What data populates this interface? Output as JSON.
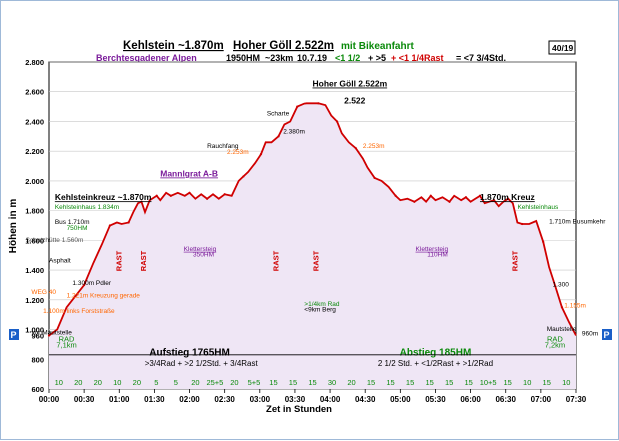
{
  "header": {
    "title_left": "Kehlstein ~1.870m",
    "title_mid": "Hoher Göll 2.522m",
    "title_right": "mit Bikeanfahrt",
    "badge": "40/19",
    "subtitle": {
      "region": "Berchtesgadener Alpen",
      "hm": "1950HM",
      "km": "~23km",
      "date": "10.7.19",
      "formula_a": "<1 1/2",
      "formula_b": "+ >5",
      "formula_c": "+ <1 1/4Rast",
      "formula_d": "= <7 3/4Std."
    }
  },
  "colors": {
    "profile_line": "#d00000",
    "profile_fill": "#efe6f5",
    "green": "#0a8a0a",
    "purple": "#7a1a9a",
    "orange": "#ff6600",
    "blue_p": "#1a5fc8"
  },
  "chart_data": {
    "type": "area",
    "ylabel": "Höhen in m",
    "xlabel": "Zet in Stunden",
    "ylim": [
      600,
      2800
    ],
    "xlim": [
      0,
      450
    ],
    "yticks": [
      "600",
      "800",
      "960",
      "1.000",
      "1.200",
      "1.400",
      "1.600",
      "1.800",
      "2.000",
      "2.200",
      "2.400",
      "2.600",
      "2.800"
    ],
    "ytick_values": [
      600,
      800,
      960,
      1000,
      1200,
      1400,
      1600,
      1800,
      2000,
      2200,
      2400,
      2600,
      2800
    ],
    "xticks": [
      "00:00",
      "00:30",
      "01:00",
      "01:30",
      "02:00",
      "02:30",
      "03:00",
      "03:30",
      "04:00",
      "04:30",
      "05:00",
      "05:30",
      "06:00",
      "06:30",
      "07:00",
      "07:30"
    ],
    "xtick_values": [
      0,
      30,
      60,
      90,
      120,
      150,
      180,
      210,
      240,
      270,
      300,
      330,
      360,
      390,
      420,
      450
    ],
    "profile_x": [
      0,
      7,
      15,
      30,
      38,
      45,
      52,
      58,
      62,
      68,
      72,
      76,
      79,
      82,
      86,
      92,
      95,
      100,
      104,
      110,
      116,
      120,
      125,
      130,
      135,
      140,
      145,
      150,
      156,
      162,
      166,
      170,
      176,
      181,
      185,
      190,
      196,
      201,
      206,
      212,
      218,
      220,
      230,
      236,
      241,
      246,
      250,
      256,
      262,
      268,
      272,
      278,
      284,
      290,
      296,
      300,
      306,
      312,
      318,
      322,
      326,
      330,
      336,
      342,
      346,
      352,
      356,
      360,
      364,
      368,
      372,
      376,
      380,
      384,
      388,
      392,
      396,
      400,
      404,
      410,
      416,
      422,
      427,
      432,
      438,
      444,
      450
    ],
    "profile_y": [
      960,
      1000,
      1150,
      1300,
      1450,
      1570,
      1700,
      1720,
      1710,
      1720,
      1790,
      1850,
      1860,
      1790,
      1870,
      1900,
      1870,
      1920,
      1900,
      1920,
      1900,
      1920,
      1880,
      1910,
      1880,
      1910,
      1880,
      1910,
      1900,
      2000,
      2030,
      2060,
      2120,
      2180,
      2260,
      2260,
      2300,
      2380,
      2400,
      2500,
      2520,
      2522,
      2522,
      2510,
      2440,
      2400,
      2320,
      2260,
      2220,
      2150,
      2090,
      2020,
      2000,
      1960,
      1900,
      1870,
      1880,
      1860,
      1890,
      1860,
      1900,
      1870,
      1890,
      1860,
      1900,
      1870,
      1890,
      1860,
      1880,
      1900,
      1850,
      1860,
      1870,
      1830,
      1860,
      1880,
      1850,
      1720,
      1710,
      1710,
      1730,
      1590,
      1420,
      1300,
      1150,
      1050,
      960
    ],
    "segments_bottom": [
      "10",
      "20",
      "20",
      "10",
      "20",
      "5",
      "5",
      "20",
      "25+5",
      "20",
      "5+5",
      "15",
      "15",
      "15",
      "30",
      "20",
      "15",
      "15",
      "15",
      "15",
      "15",
      "15",
      "10+5",
      "15",
      "10",
      "15",
      "10"
    ],
    "rests": [
      {
        "label": "RAST",
        "x": 62
      },
      {
        "label": "RAST",
        "x": 83
      },
      {
        "label": "RAST",
        "x": 196
      },
      {
        "label": "RAST",
        "x": 230
      },
      {
        "label": "RAST",
        "x": 400
      }
    ],
    "annotations": [
      {
        "text": "Kehlsteinkreuz ~1.870m",
        "x": 5,
        "y": 1870,
        "color": "#000",
        "bold": true,
        "underline": true
      },
      {
        "text": "Kehlsteinhaus 1.834m",
        "x": 5,
        "y": 1810,
        "color": "#0a8a0a"
      },
      {
        "text": "Bus 1.710m",
        "x": 5,
        "y": 1710,
        "color": "#000"
      },
      {
        "text": "750HM",
        "x": 15,
        "y": 1670,
        "color": "#0a8a0a"
      },
      {
        "text": "Schutzhütte 1.560m",
        "x": -20,
        "y": 1590,
        "color": "#555"
      },
      {
        "text": "Asphalt",
        "x": 0,
        "y": 1450,
        "color": "#000"
      },
      {
        "text": "1.300m Pdler",
        "x": 20,
        "y": 1300,
        "color": "#000"
      },
      {
        "text": "WEG 40",
        "x": -15,
        "y": 1240,
        "color": "#ff6600"
      },
      {
        "text": "1.221m Kreuzung gerade",
        "x": 15,
        "y": 1215,
        "color": "#ff6600"
      },
      {
        "text": "1.100m links Forststraße",
        "x": -5,
        "y": 1110,
        "color": "#ff6600"
      },
      {
        "text": "vor Mautstelle",
        "x": -15,
        "y": 965,
        "color": "#000"
      },
      {
        "text": "Mannlgrat A-B",
        "x": 95,
        "y": 2030,
        "color": "#7a1a9a",
        "bold": true,
        "underline": true
      },
      {
        "text": "Klettersteig",
        "x": 115,
        "y": 1530,
        "color": "#7a1a9a",
        "underline": true
      },
      {
        "text": "350HM",
        "x": 123,
        "y": 1490,
        "color": "#7a1a9a"
      },
      {
        "text": "Rauchfang",
        "x": 135,
        "y": 2220,
        "color": "#000"
      },
      {
        "text": "2.253m",
        "x": 152,
        "y": 2180,
        "color": "#ff6600"
      },
      {
        "text": "Scharte",
        "x": 186,
        "y": 2440,
        "color": "#000"
      },
      {
        "text": "2.380m",
        "x": 200,
        "y": 2320,
        "color": "#000"
      },
      {
        "text": "2.522",
        "x": 252,
        "y": 2520,
        "color": "#000",
        "bold": true
      },
      {
        "text": "2.253m",
        "x": 268,
        "y": 2220,
        "color": "#ff6600"
      },
      {
        "text": "Hoher Göll 2.522m",
        "x": 225,
        "y": 2635,
        "color": "#000",
        "bold": true,
        "underline": true
      },
      {
        "text": "1.870m Kreuz",
        "x": 368,
        "y": 1870,
        "color": "#000",
        "bold": true,
        "underline": true
      },
      {
        "text": "Kehlsteinhaus",
        "x": 400,
        "y": 1810,
        "color": "#0a8a0a"
      },
      {
        "text": "1.710m Busumkehr",
        "x": 427,
        "y": 1715,
        "color": "#000"
      },
      {
        "text": "Klettersteig",
        "x": 313,
        "y": 1530,
        "color": "#7a1a9a",
        "underline": true
      },
      {
        "text": "110HM",
        "x": 323,
        "y": 1490,
        "color": "#7a1a9a"
      },
      {
        "text": "1.300",
        "x": 430,
        "y": 1290,
        "color": "#000"
      },
      {
        "text": "1.155m",
        "x": 440,
        "y": 1150,
        "color": "#ff6600"
      },
      {
        "text": "Mautstelle",
        "x": 425,
        "y": 990,
        "color": "#000"
      },
      {
        "text": "960m",
        "x": 455,
        "y": 960,
        "color": "#000"
      },
      {
        "text": ">1/4km Rad",
        "x": 218,
        "y": 1160,
        "color": "#0a8a0a"
      },
      {
        "text": "<9km Berg",
        "x": 218,
        "y": 1120,
        "color": "#000"
      }
    ],
    "phases": [
      {
        "label": "Aufstieg 1765HM",
        "x": 120,
        "y": 825,
        "color": "#000",
        "bold": true
      },
      {
        "label": ">3/4Rad + >2 1/2Std. + 3/4Rast",
        "x": 130,
        "y": 755,
        "color": "#000"
      },
      {
        "label": "Abstieg 185HM",
        "x": 330,
        "y": 825,
        "color": "#0a8a0a",
        "bold": true
      },
      {
        "label": "2 1/2 Std. + <1/2Rast + >1/2Rad",
        "x": 330,
        "y": 755,
        "color": "#000"
      }
    ],
    "rad": [
      {
        "label": "RAD",
        "sub": "7,1km",
        "x": 15
      },
      {
        "label": "RAD",
        "sub": "7,2km",
        "x": 432
      }
    ]
  }
}
